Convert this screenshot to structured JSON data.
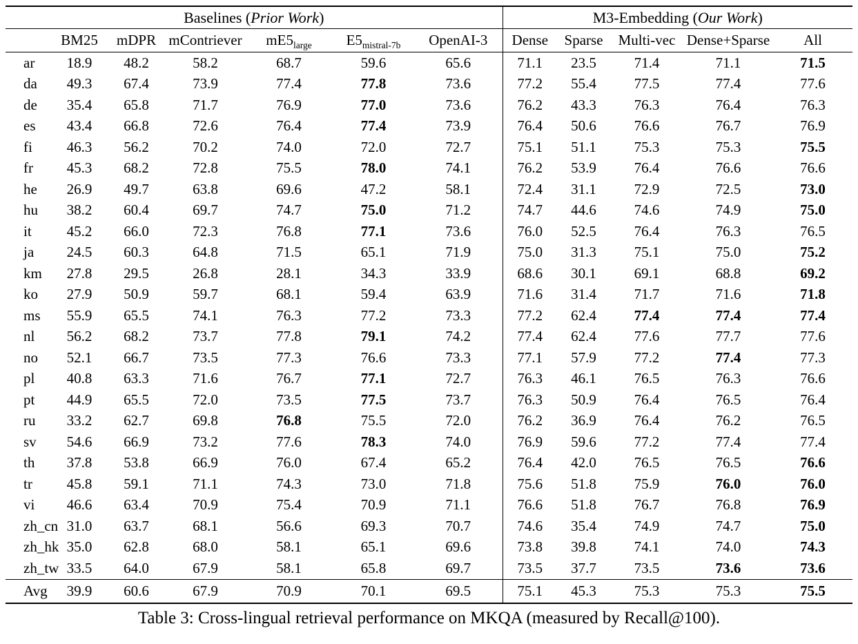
{
  "page": {
    "caption": "Table 3: Cross-lingual retrieval performance on MKQA (measured by Recall@100)."
  },
  "table": {
    "groups": [
      {
        "plain": "Baselines (",
        "italic": "Prior Work",
        "close": ")"
      },
      {
        "plain": "M3-Embedding (",
        "italic": "Our Work",
        "close": ")"
      }
    ],
    "columns": [
      {
        "main": ""
      },
      {
        "main": "BM25"
      },
      {
        "main": "mDPR"
      },
      {
        "main": "mContriever"
      },
      {
        "main": "mE5",
        "sub": "large"
      },
      {
        "main": "E5",
        "sub": "mistral-7b"
      },
      {
        "main": "OpenAI-3"
      },
      {
        "main": "Dense"
      },
      {
        "main": "Sparse"
      },
      {
        "main": "Multi-vec"
      },
      {
        "main": "Dense+Sparse"
      },
      {
        "main": "All"
      }
    ],
    "rows": [
      {
        "lang": "ar",
        "values": [
          "18.9",
          "48.2",
          "58.2",
          "68.7",
          "59.6",
          "65.6",
          "71.1",
          "23.5",
          "71.4",
          "71.1",
          "71.5"
        ],
        "bold": [
          10
        ]
      },
      {
        "lang": "da",
        "values": [
          "49.3",
          "67.4",
          "73.9",
          "77.4",
          "77.8",
          "73.6",
          "77.2",
          "55.4",
          "77.5",
          "77.4",
          "77.6"
        ],
        "bold": [
          4
        ]
      },
      {
        "lang": "de",
        "values": [
          "35.4",
          "65.8",
          "71.7",
          "76.9",
          "77.0",
          "73.6",
          "76.2",
          "43.3",
          "76.3",
          "76.4",
          "76.3"
        ],
        "bold": [
          4
        ]
      },
      {
        "lang": "es",
        "values": [
          "43.4",
          "66.8",
          "72.6",
          "76.4",
          "77.4",
          "73.9",
          "76.4",
          "50.6",
          "76.6",
          "76.7",
          "76.9"
        ],
        "bold": [
          4
        ]
      },
      {
        "lang": "fi",
        "values": [
          "46.3",
          "56.2",
          "70.2",
          "74.0",
          "72.0",
          "72.7",
          "75.1",
          "51.1",
          "75.3",
          "75.3",
          "75.5"
        ],
        "bold": [
          10
        ]
      },
      {
        "lang": "fr",
        "values": [
          "45.3",
          "68.2",
          "72.8",
          "75.5",
          "78.0",
          "74.1",
          "76.2",
          "53.9",
          "76.4",
          "76.6",
          "76.6"
        ],
        "bold": [
          4
        ]
      },
      {
        "lang": "he",
        "values": [
          "26.9",
          "49.7",
          "63.8",
          "69.6",
          "47.2",
          "58.1",
          "72.4",
          "31.1",
          "72.9",
          "72.5",
          "73.0"
        ],
        "bold": [
          10
        ]
      },
      {
        "lang": "hu",
        "values": [
          "38.2",
          "60.4",
          "69.7",
          "74.7",
          "75.0",
          "71.2",
          "74.7",
          "44.6",
          "74.6",
          "74.9",
          "75.0"
        ],
        "bold": [
          4,
          10
        ]
      },
      {
        "lang": "it",
        "values": [
          "45.2",
          "66.0",
          "72.3",
          "76.8",
          "77.1",
          "73.6",
          "76.0",
          "52.5",
          "76.4",
          "76.3",
          "76.5"
        ],
        "bold": [
          4
        ]
      },
      {
        "lang": "ja",
        "values": [
          "24.5",
          "60.3",
          "64.8",
          "71.5",
          "65.1",
          "71.9",
          "75.0",
          "31.3",
          "75.1",
          "75.0",
          "75.2"
        ],
        "bold": [
          10
        ]
      },
      {
        "lang": "km",
        "values": [
          "27.8",
          "29.5",
          "26.8",
          "28.1",
          "34.3",
          "33.9",
          "68.6",
          "30.1",
          "69.1",
          "68.8",
          "69.2"
        ],
        "bold": [
          10
        ]
      },
      {
        "lang": "ko",
        "values": [
          "27.9",
          "50.9",
          "59.7",
          "68.1",
          "59.4",
          "63.9",
          "71.6",
          "31.4",
          "71.7",
          "71.6",
          "71.8"
        ],
        "bold": [
          10
        ]
      },
      {
        "lang": "ms",
        "values": [
          "55.9",
          "65.5",
          "74.1",
          "76.3",
          "77.2",
          "73.3",
          "77.2",
          "62.4",
          "77.4",
          "77.4",
          "77.4"
        ],
        "bold": [
          8,
          9,
          10
        ]
      },
      {
        "lang": "nl",
        "values": [
          "56.2",
          "68.2",
          "73.7",
          "77.8",
          "79.1",
          "74.2",
          "77.4",
          "62.4",
          "77.6",
          "77.7",
          "77.6"
        ],
        "bold": [
          4
        ]
      },
      {
        "lang": "no",
        "values": [
          "52.1",
          "66.7",
          "73.5",
          "77.3",
          "76.6",
          "73.3",
          "77.1",
          "57.9",
          "77.2",
          "77.4",
          "77.3"
        ],
        "bold": [
          9
        ]
      },
      {
        "lang": "pl",
        "values": [
          "40.8",
          "63.3",
          "71.6",
          "76.7",
          "77.1",
          "72.7",
          "76.3",
          "46.1",
          "76.5",
          "76.3",
          "76.6"
        ],
        "bold": [
          4
        ]
      },
      {
        "lang": "pt",
        "values": [
          "44.9",
          "65.5",
          "72.0",
          "73.5",
          "77.5",
          "73.7",
          "76.3",
          "50.9",
          "76.4",
          "76.5",
          "76.4"
        ],
        "bold": [
          4
        ]
      },
      {
        "lang": "ru",
        "values": [
          "33.2",
          "62.7",
          "69.8",
          "76.8",
          "75.5",
          "72.0",
          "76.2",
          "36.9",
          "76.4",
          "76.2",
          "76.5"
        ],
        "bold": [
          3
        ]
      },
      {
        "lang": "sv",
        "values": [
          "54.6",
          "66.9",
          "73.2",
          "77.6",
          "78.3",
          "74.0",
          "76.9",
          "59.6",
          "77.2",
          "77.4",
          "77.4"
        ],
        "bold": [
          4
        ]
      },
      {
        "lang": "th",
        "values": [
          "37.8",
          "53.8",
          "66.9",
          "76.0",
          "67.4",
          "65.2",
          "76.4",
          "42.0",
          "76.5",
          "76.5",
          "76.6"
        ],
        "bold": [
          10
        ]
      },
      {
        "lang": "tr",
        "values": [
          "45.8",
          "59.1",
          "71.1",
          "74.3",
          "73.0",
          "71.8",
          "75.6",
          "51.8",
          "75.9",
          "76.0",
          "76.0"
        ],
        "bold": [
          9,
          10
        ]
      },
      {
        "lang": "vi",
        "values": [
          "46.6",
          "63.4",
          "70.9",
          "75.4",
          "70.9",
          "71.1",
          "76.6",
          "51.8",
          "76.7",
          "76.8",
          "76.9"
        ],
        "bold": [
          10
        ]
      },
      {
        "lang": "zh_cn",
        "values": [
          "31.0",
          "63.7",
          "68.1",
          "56.6",
          "69.3",
          "70.7",
          "74.6",
          "35.4",
          "74.9",
          "74.7",
          "75.0"
        ],
        "bold": [
          10
        ]
      },
      {
        "lang": "zh_hk",
        "values": [
          "35.0",
          "62.8",
          "68.0",
          "58.1",
          "65.1",
          "69.6",
          "73.8",
          "39.8",
          "74.1",
          "74.0",
          "74.3"
        ],
        "bold": [
          10
        ]
      },
      {
        "lang": "zh_tw",
        "values": [
          "33.5",
          "64.0",
          "67.9",
          "58.1",
          "65.8",
          "69.7",
          "73.5",
          "37.7",
          "73.5",
          "73.6",
          "73.6"
        ],
        "bold": [
          9,
          10
        ]
      }
    ],
    "avg_row": {
      "lang": "Avg",
      "values": [
        "39.9",
        "60.6",
        "67.9",
        "70.9",
        "70.1",
        "69.5",
        "75.1",
        "45.3",
        "75.3",
        "75.3",
        "75.5"
      ],
      "bold": [
        10
      ]
    }
  }
}
